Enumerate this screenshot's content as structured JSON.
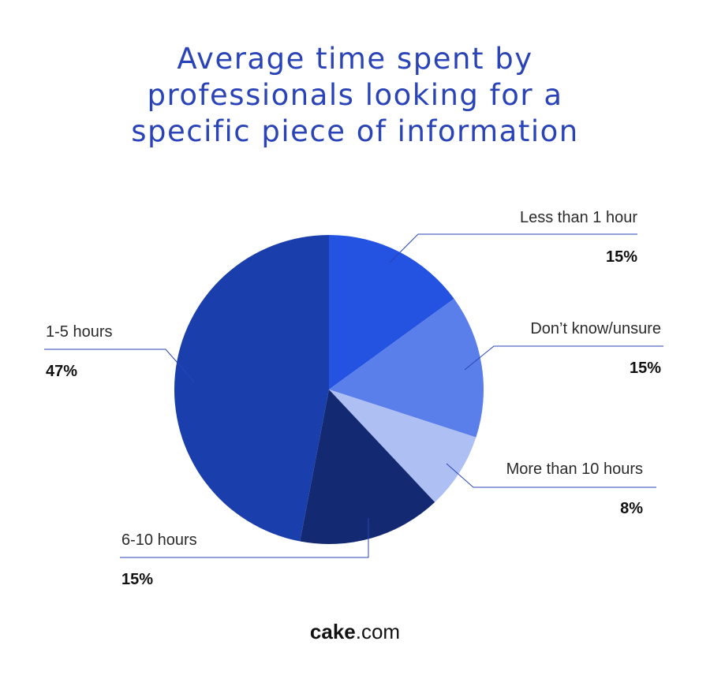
{
  "chart_data": {
    "type": "pie",
    "title": "Average time spent by\nprofessionals looking for a\nspecific piece of information",
    "slices": [
      {
        "label": "Less than 1 hour",
        "value": 15,
        "value_label": "15%",
        "color": "#2353e0"
      },
      {
        "label": "Don’t know/unsure",
        "value": 15,
        "value_label": "15%",
        "color": "#5a7fea"
      },
      {
        "label": "More than 10 hours",
        "value": 8,
        "value_label": "8%",
        "color": "#aebff4"
      },
      {
        "label": "6-10 hours",
        "value": 15,
        "value_label": "15%",
        "color": "#132a72"
      },
      {
        "label": "1-5 hours",
        "value": 47,
        "value_label": "47%",
        "color": "#1a3fad"
      }
    ]
  },
  "brand": {
    "bold": "cake",
    "rest": ".com"
  }
}
